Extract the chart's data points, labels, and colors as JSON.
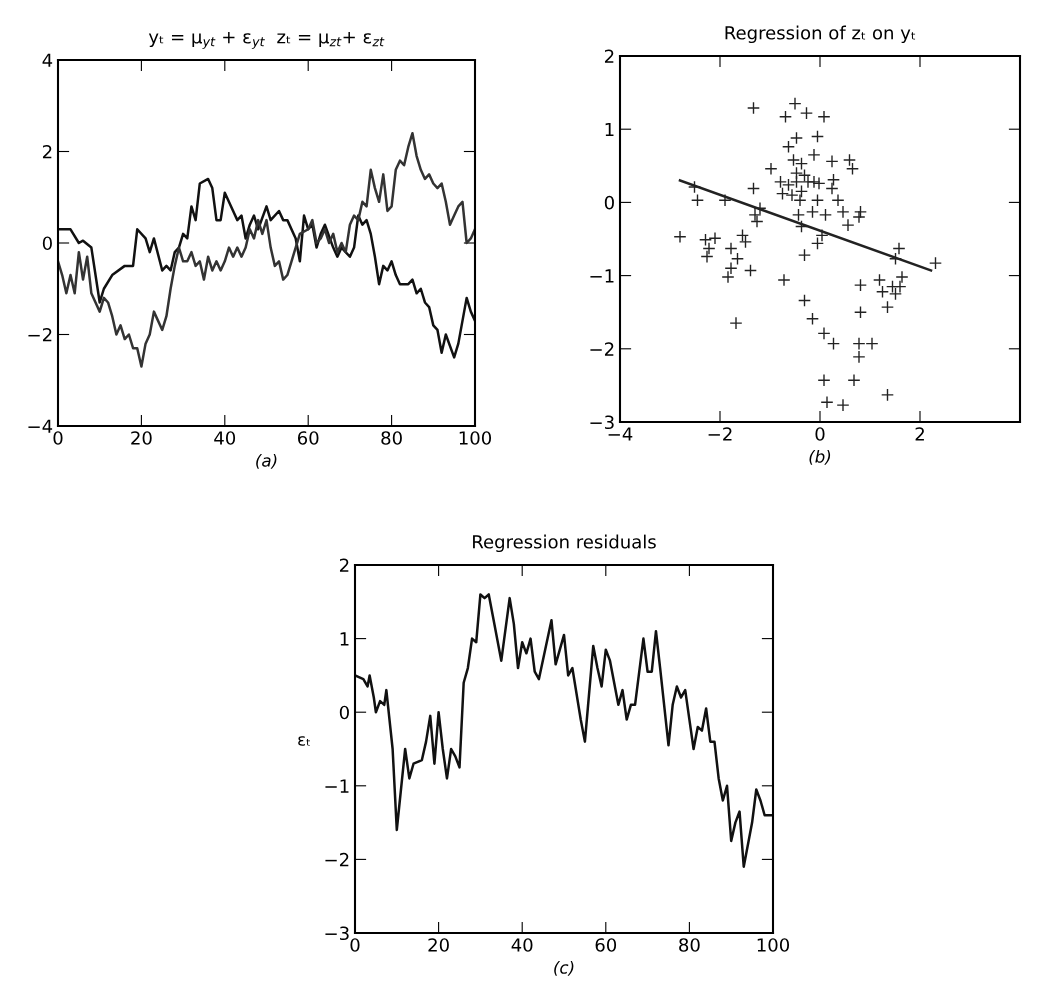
{
  "chart_data": [
    {
      "type": "line",
      "title": "yₜ = μ$_{yt}$ + ε$_{yt}$  zₜ = μ$_{zt}$+ ε$_{zt}$",
      "xlabel": "(a)",
      "xlim": [
        0,
        100
      ],
      "ylim": [
        -4,
        4
      ],
      "xticks": [
        0,
        20,
        40,
        60,
        80,
        100
      ],
      "yticks": [
        {
          "value": -4,
          "label": "−4"
        },
        {
          "value": -2,
          "label": "−2"
        },
        0,
        2,
        4
      ],
      "series": [
        {
          "color": "#111111",
          "x": [
            0,
            3,
            5,
            6,
            8,
            10,
            11,
            13,
            16,
            18,
            19,
            21,
            22,
            23,
            25,
            26,
            27,
            28,
            29,
            30,
            31,
            32,
            33,
            34,
            36,
            37,
            38,
            39,
            40,
            42,
            43,
            44,
            45,
            46,
            47,
            48,
            50,
            51,
            53,
            54,
            55,
            57,
            58,
            59,
            60,
            61,
            62,
            63,
            64,
            66,
            67,
            68,
            70,
            71,
            72,
            73,
            74,
            75,
            76,
            77,
            78,
            79,
            80,
            81,
            82,
            84,
            85,
            86,
            87,
            88,
            89,
            90,
            91,
            92,
            93,
            95,
            96,
            98,
            99,
            100
          ],
          "values": [
            0.3,
            0.3,
            0,
            0.05,
            -0.1,
            -1.3,
            -1.0,
            -0.7,
            -0.5,
            -0.5,
            0.3,
            0.1,
            -0.2,
            0.1,
            -0.6,
            -0.5,
            -0.6,
            -0.2,
            -0.1,
            0.2,
            0.1,
            0.8,
            0.5,
            1.3,
            1.4,
            1.2,
            0.5,
            0.5,
            1.1,
            0.7,
            0.5,
            0.6,
            0.1,
            0.4,
            0.6,
            0.3,
            0.8,
            0.5,
            0.7,
            0.5,
            0.5,
            0.1,
            -0.4,
            0.6,
            0.3,
            0.4,
            -0.1,
            0.2,
            0.4,
            -0.1,
            -0.3,
            -0.1,
            -0.3,
            -0.1,
            0.6,
            0.4,
            0.5,
            0.2,
            -0.3,
            -0.9,
            -0.5,
            -0.6,
            -0.4,
            -0.7,
            -0.9,
            -0.9,
            -0.8,
            -1.1,
            -1.0,
            -1.3,
            -1.4,
            -1.8,
            -1.9,
            -2.4,
            -2.0,
            -2.5,
            -2.2,
            -1.2,
            -1.5,
            -1.7
          ]
        },
        {
          "color": "#333333",
          "x": [
            0,
            1,
            2,
            3,
            4,
            5,
            6,
            7,
            8,
            9,
            10,
            11,
            12,
            13,
            14,
            15,
            16,
            17,
            18,
            19,
            20,
            21,
            22,
            23,
            25,
            26,
            27,
            28,
            29,
            30,
            31,
            32,
            33,
            34,
            35,
            36,
            37,
            38,
            39,
            40,
            41,
            42,
            43,
            44,
            45,
            46,
            47,
            48,
            49,
            50,
            51,
            52,
            53,
            54,
            55,
            56,
            58,
            60,
            61,
            62,
            63,
            64,
            65,
            66,
            67,
            68,
            69,
            70,
            71,
            72,
            73,
            74,
            75,
            76,
            77,
            78,
            79,
            80,
            81,
            82,
            83,
            84,
            85,
            86,
            87,
            88,
            89,
            90,
            91,
            92,
            93,
            94,
            95,
            96,
            97,
            98,
            99,
            100
          ],
          "values": [
            -0.4,
            -0.7,
            -1.1,
            -0.7,
            -1.1,
            -0.2,
            -0.8,
            -0.3,
            -1.1,
            -1.3,
            -1.5,
            -1.2,
            -1.3,
            -1.6,
            -2.0,
            -1.8,
            -2.1,
            -2.0,
            -2.3,
            -2.3,
            -2.7,
            -2.2,
            -2.0,
            -1.5,
            -1.9,
            -1.6,
            -1.0,
            -0.5,
            -0.1,
            -0.4,
            -0.4,
            -0.2,
            -0.5,
            -0.4,
            -0.8,
            -0.3,
            -0.6,
            -0.4,
            -0.6,
            -0.4,
            -0.1,
            -0.3,
            -0.1,
            -0.3,
            -0.1,
            0.3,
            0.1,
            0.5,
            0.2,
            0.5,
            -0.1,
            -0.5,
            -0.4,
            -0.8,
            -0.7,
            -0.4,
            0.2,
            0.3,
            0.5,
            0.0,
            0.1,
            0.3,
            0.0,
            0.2,
            -0.2,
            0.0,
            -0.2,
            0.4,
            0.6,
            0.5,
            0.9,
            0.8,
            1.6,
            1.2,
            0.9,
            1.5,
            0.7,
            0.8,
            1.6,
            1.8,
            1.7,
            2.1,
            2.4,
            1.9,
            1.6,
            1.4,
            1.5,
            1.3,
            1.2,
            1.3,
            0.9,
            0.4,
            0.6,
            0.8,
            0.9,
            0.0,
            0.1,
            0.3
          ]
        }
      ]
    },
    {
      "type": "scatter",
      "title": "Regression of zₜ on yₜ",
      "xlabel": "(b)",
      "xlim": [
        -4,
        4
      ],
      "ylim": [
        -3,
        2
      ],
      "xticks": [
        {
          "value": -4,
          "label": "−4"
        },
        {
          "value": -2,
          "label": "−2"
        },
        0,
        2,
        {
          "value": 4,
          "label": null
        }
      ],
      "yticks": [
        {
          "value": -3,
          "label": "−3"
        },
        {
          "value": -2,
          "label": "−2"
        },
        {
          "value": -1,
          "label": "−1"
        },
        0,
        1,
        2
      ],
      "series": [
        {
          "color": "#222222",
          "marker": "cross",
          "x": [
            -1.33,
            -0.5,
            -0.69,
            -0.27,
            0.08,
            -0.47,
            -0.05,
            -0.63,
            -0.12,
            0.24,
            0.59,
            0.65,
            -0.98,
            -0.53,
            -0.37,
            -0.47,
            -0.31,
            -0.79,
            -0.63,
            -0.47,
            -0.24,
            -0.12,
            -0.02,
            0.27,
            0.24,
            -0.75,
            -0.56,
            -0.37,
            -0.4,
            -0.05,
            0.36,
            -1.33,
            -2.51,
            -2.45,
            -1.9,
            -1.2,
            -1.3,
            -1.26,
            -0.43,
            -0.15,
            0.11,
            0.46,
            0.81,
            0.78,
            0.56,
            -0.37,
            0.04,
            -0.05,
            -2.8,
            -2.29,
            -2.1,
            -2.22,
            -2.26,
            -1.78,
            -1.55,
            -1.49,
            -1.65,
            -1.78,
            -1.84,
            -1.39,
            -0.31,
            1.58,
            1.51,
            2.31,
            -0.72,
            0.81,
            1.19,
            1.64,
            1.25,
            1.45,
            1.6,
            1.51,
            1.35,
            -0.31,
            0.81,
            -0.15,
            -1.68,
            0.08,
            0.27,
            0.78,
            1.04,
            0.78,
            0.08,
            0.68,
            0.14,
            0.46,
            1.35
          ],
          "values": [
            1.29,
            1.35,
            1.17,
            1.22,
            1.17,
            0.88,
            0.9,
            0.76,
            0.65,
            0.56,
            0.58,
            0.46,
            0.46,
            0.58,
            0.53,
            0.4,
            0.37,
            0.28,
            0.24,
            0.28,
            0.28,
            0.28,
            0.26,
            0.31,
            0.19,
            0.12,
            0.1,
            0.15,
            0.03,
            0.03,
            0.03,
            0.19,
            0.21,
            0.03,
            0.03,
            -0.08,
            -0.17,
            -0.26,
            -0.17,
            -0.13,
            -0.17,
            -0.13,
            -0.13,
            -0.2,
            -0.31,
            -0.33,
            -0.45,
            -0.56,
            -0.47,
            -0.51,
            -0.49,
            -0.63,
            -0.74,
            -0.63,
            -0.45,
            -0.54,
            -0.77,
            -0.9,
            -1.02,
            -0.93,
            -0.72,
            -0.63,
            -0.77,
            -0.83,
            -1.06,
            -1.13,
            -1.06,
            -1.02,
            -1.22,
            -1.15,
            -1.15,
            -1.25,
            -1.43,
            -1.34,
            -1.5,
            -1.59,
            -1.65,
            -1.79,
            -1.93,
            -1.93,
            -1.93,
            -2.11,
            -2.43,
            -2.43,
            -2.73,
            -2.77,
            -2.63
          ]
        },
        {
          "type": "line",
          "color": "#222222",
          "x": [
            -2.8,
            2.22
          ],
          "values": [
            0.3,
            -0.93
          ]
        }
      ]
    },
    {
      "type": "line",
      "title": "Regression residuals",
      "xlabel": "(c)",
      "ylabel": "εₜ",
      "xlim": [
        0,
        100
      ],
      "ylim": [
        -3,
        2
      ],
      "xticks": [
        0,
        20,
        40,
        60,
        80,
        100
      ],
      "yticks": [
        {
          "value": -3,
          "label": "−3"
        },
        {
          "value": -2,
          "label": "−2"
        },
        {
          "value": -1,
          "label": "−1"
        },
        0,
        1,
        2
      ],
      "series": [
        {
          "color": "#111111",
          "x": [
            0,
            2,
            3,
            3.5,
            4.5,
            5,
            6,
            7,
            7.5,
            9,
            10,
            12,
            13,
            14,
            16,
            17,
            18,
            19,
            20,
            21,
            22,
            23,
            24,
            25,
            26,
            27,
            28,
            29,
            30,
            31,
            32,
            33,
            35,
            37,
            38,
            39,
            40,
            41,
            42,
            43,
            44,
            47,
            48,
            50,
            51,
            52,
            54,
            55,
            57,
            58,
            59,
            60,
            61,
            63,
            64,
            65,
            66,
            67,
            69,
            70,
            71,
            72,
            73,
            75,
            76,
            77,
            78,
            79,
            80,
            81,
            82,
            83,
            84,
            85,
            86,
            87,
            88,
            89,
            90,
            91,
            92,
            93,
            95,
            96,
            97,
            98,
            100
          ],
          "values": [
            0.5,
            0.45,
            0.35,
            0.5,
            0.2,
            0.0,
            0.15,
            0.1,
            0.3,
            -0.5,
            -1.6,
            -0.5,
            -0.9,
            -0.7,
            -0.65,
            -0.4,
            -0.05,
            -0.7,
            0.0,
            -0.5,
            -0.9,
            -0.5,
            -0.6,
            -0.75,
            0.4,
            0.6,
            1.0,
            0.95,
            1.6,
            1.55,
            1.6,
            1.3,
            0.7,
            1.55,
            1.2,
            0.6,
            0.95,
            0.8,
            1.0,
            0.55,
            0.45,
            1.25,
            0.65,
            1.05,
            0.5,
            0.6,
            -0.1,
            -0.4,
            0.9,
            0.6,
            0.35,
            0.85,
            0.7,
            0.1,
            0.3,
            -0.1,
            0.1,
            0.1,
            1.0,
            0.55,
            0.55,
            1.1,
            0.6,
            -0.45,
            0.1,
            0.35,
            0.2,
            0.3,
            -0.1,
            -0.5,
            -0.2,
            -0.25,
            0.05,
            -0.4,
            -0.4,
            -0.9,
            -1.2,
            -1.0,
            -1.75,
            -1.5,
            -1.35,
            -2.1,
            -1.5,
            -1.05,
            -1.2,
            -1.4,
            -1.4
          ]
        }
      ]
    }
  ]
}
